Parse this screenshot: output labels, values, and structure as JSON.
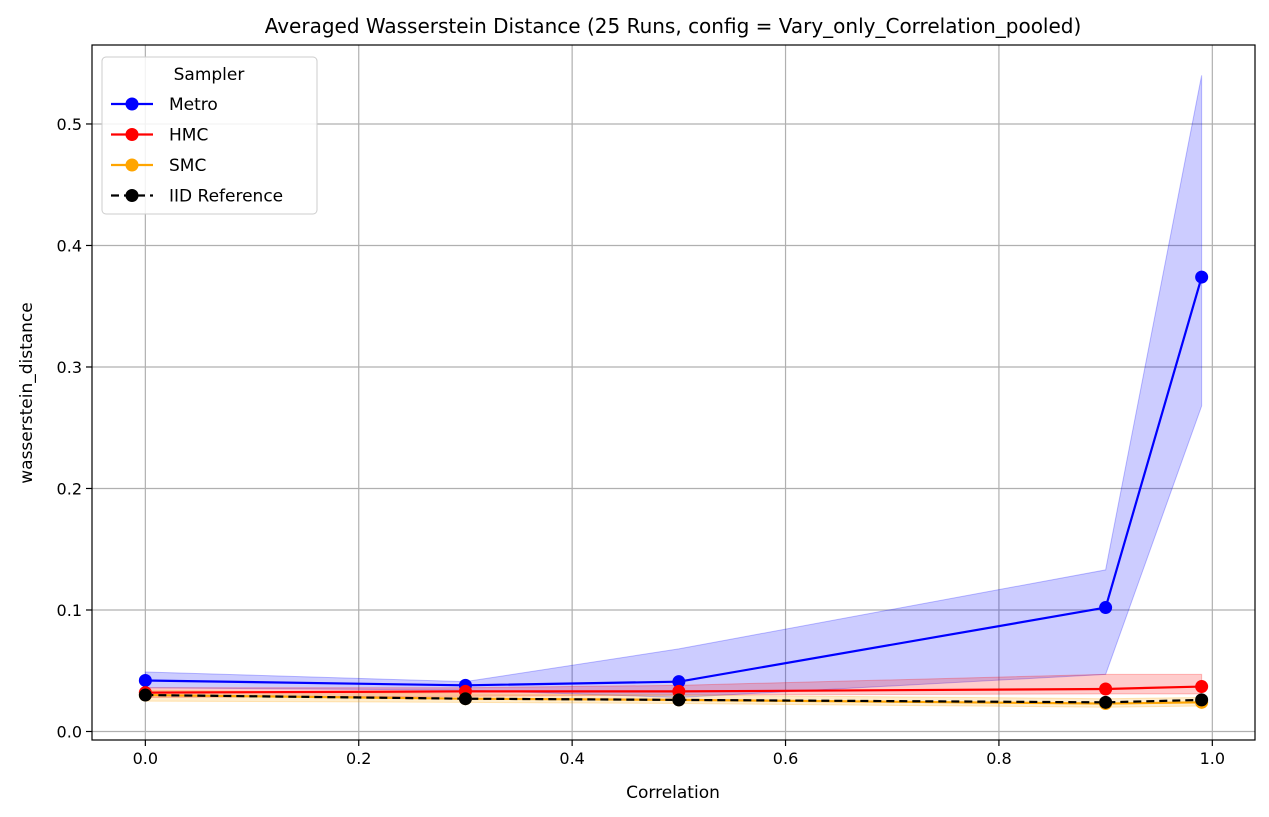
{
  "chart_data": {
    "type": "line",
    "title": "Averaged Wasserstein Distance (25 Runs, config = Vary_only_Correlation_pooled)",
    "xlabel": "Correlation",
    "ylabel": "wasserstein_distance",
    "xlim": [
      -0.05,
      1.04
    ],
    "ylim": [
      -0.007,
      0.565
    ],
    "x": [
      0.0,
      0.3,
      0.5,
      0.9,
      0.99
    ],
    "xticks": [
      0.0,
      0.2,
      0.4,
      0.6,
      0.8,
      1.0
    ],
    "xtick_labels": [
      "0.0",
      "0.2",
      "0.4",
      "0.6",
      "0.8",
      "1.0"
    ],
    "yticks": [
      0.0,
      0.1,
      0.2,
      0.3,
      0.4,
      0.5
    ],
    "ytick_labels": [
      "0.0",
      "0.1",
      "0.2",
      "0.3",
      "0.4",
      "0.5"
    ],
    "grid": true,
    "legend": {
      "title": "Sampler",
      "placement": "top-left"
    },
    "series": [
      {
        "name": "Metro",
        "color": "#0000ff",
        "style": "solid",
        "values": [
          0.042,
          0.038,
          0.041,
          0.102,
          0.374
        ],
        "band_lower": [
          0.036,
          0.034,
          0.028,
          0.047,
          0.268
        ],
        "band_upper": [
          0.049,
          0.041,
          0.068,
          0.133,
          0.54
        ]
      },
      {
        "name": "HMC",
        "color": "#ff0000",
        "style": "solid",
        "values": [
          0.032,
          0.033,
          0.033,
          0.035,
          0.037
        ],
        "band_lower": [
          0.028,
          0.029,
          0.03,
          0.031,
          0.031
        ],
        "band_upper": [
          0.036,
          0.036,
          0.038,
          0.047,
          0.047
        ]
      },
      {
        "name": "SMC",
        "color": "#ffa500",
        "style": "solid",
        "values": [
          0.03,
          0.027,
          0.026,
          0.023,
          0.024
        ],
        "band_lower": [
          0.025,
          0.024,
          0.023,
          0.02,
          0.021
        ],
        "band_upper": [
          0.034,
          0.031,
          0.03,
          0.027,
          0.028
        ]
      },
      {
        "name": "IID Reference",
        "color": "#000000",
        "style": "dashed",
        "values": [
          0.03,
          0.027,
          0.026,
          0.024,
          0.026
        ]
      }
    ]
  }
}
